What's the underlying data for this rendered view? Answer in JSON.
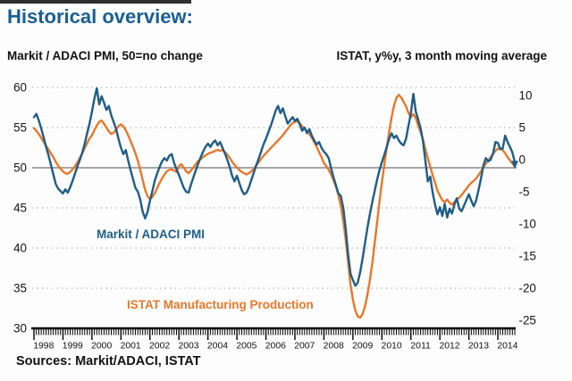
{
  "title": "Historical overview:",
  "source": "Sources: Markit/ADACI, ISTAT",
  "colors": {
    "pmi_blue": "#1f5d87",
    "istat_orange": "#e8782a",
    "title_blue": "#1b5e93",
    "grid_gray": "#9a9a9a",
    "midline_gray": "#8a8a8a",
    "axis_black": "#000000"
  },
  "chart_data": {
    "type": "line",
    "x_start": "1998-01",
    "x_interval": "monthly",
    "x_labels": [
      "1998",
      "1999",
      "2000",
      "2001",
      "2002",
      "2003",
      "2004",
      "2005",
      "2006",
      "2007",
      "2008",
      "2009",
      "2010",
      "2011",
      "2012",
      "2013",
      "2014"
    ],
    "left_axis": {
      "title": "Markit / ADACI PMI, 50=no change",
      "ticks": [
        60,
        55,
        50,
        45,
        40,
        35,
        30
      ],
      "min": 30,
      "max": 60,
      "solid_line_at": 50
    },
    "right_axis": {
      "title": "ISTAT, y%y, 3 month moving average",
      "ticks": [
        10,
        5,
        0,
        -5,
        -10,
        -15,
        -20,
        -25
      ],
      "min": -25,
      "max": 10
    },
    "grid": "dotted-horizontal",
    "legend_position": "in-plot-labels",
    "series": [
      {
        "id": "pmi",
        "name": "Markit / ADACI PMI",
        "axis": "left",
        "color": "#1f5d87",
        "end_marker": "arrow-down",
        "values": [
          56.3,
          56.7,
          55.9,
          54.9,
          53.8,
          52.6,
          51.6,
          50.4,
          49.2,
          48.0,
          47.4,
          47.1,
          46.8,
          47.3,
          46.9,
          47.6,
          48.4,
          49.3,
          50.2,
          51.0,
          51.9,
          53.0,
          54.3,
          55.5,
          57.0,
          58.6,
          59.9,
          57.9,
          58.9,
          58.1,
          57.2,
          57.7,
          56.5,
          55.7,
          54.8,
          53.6,
          52.5,
          51.7,
          52.2,
          50.9,
          49.7,
          48.6,
          47.5,
          47.0,
          46.0,
          44.5,
          43.7,
          44.5,
          45.9,
          47.1,
          48.4,
          49.3,
          50.1,
          50.8,
          51.2,
          50.9,
          51.5,
          51.7,
          50.6,
          49.8,
          49.1,
          48.3,
          47.5,
          47.0,
          46.9,
          47.9,
          48.8,
          49.7,
          50.5,
          51.3,
          52.0,
          52.6,
          53.0,
          52.6,
          53.1,
          53.4,
          52.8,
          53.2,
          52.5,
          51.8,
          51.0,
          50.1,
          49.0,
          48.3,
          49.0,
          48.1,
          47.2,
          46.7,
          46.9,
          47.6,
          48.5,
          49.4,
          50.3,
          51.1,
          52.0,
          52.9,
          53.6,
          54.4,
          55.2,
          56.1,
          57.1,
          57.7,
          56.8,
          57.4,
          56.4,
          55.5,
          55.9,
          56.3,
          55.8,
          56.1,
          55.4,
          54.6,
          55.0,
          54.3,
          54.8,
          54.0,
          53.4,
          52.9,
          53.2,
          52.5,
          52.0,
          51.7,
          51.2,
          49.9,
          48.8,
          47.8,
          46.8,
          46.5,
          45.0,
          42.4,
          39.2,
          36.8,
          36.0,
          35.3,
          35.7,
          37.0,
          38.7,
          40.6,
          42.5,
          44.2,
          45.7,
          47.1,
          48.5,
          49.7,
          50.7,
          51.6,
          52.6,
          53.6,
          54.3,
          53.7,
          54.0,
          53.4,
          53.0,
          52.8,
          53.6,
          55.2,
          56.8,
          59.2,
          57.0,
          56.0,
          54.9,
          53.3,
          50.8,
          48.3,
          48.9,
          46.9,
          45.4,
          44.2,
          45.1,
          44.0,
          45.5,
          43.8,
          44.9,
          44.3,
          45.4,
          46.2,
          44.9,
          44.6,
          45.3,
          46.0,
          46.7,
          45.9,
          45.2,
          45.9,
          47.2,
          48.7,
          50.3,
          51.2,
          50.8,
          51.0,
          51.8,
          53.2,
          53.1,
          52.3,
          52.4,
          54.0,
          53.2,
          52.6,
          51.9,
          50.7
        ]
      },
      {
        "id": "istat",
        "name": "ISTAT Manufacturing Production",
        "axis": "right",
        "color": "#e8782a",
        "values": [
          4.9,
          4.5,
          4.0,
          3.4,
          2.8,
          2.2,
          1.6,
          1.0,
          0.4,
          -0.3,
          -0.9,
          -1.4,
          -1.8,
          -2.1,
          -2.2,
          -1.9,
          -1.5,
          -1.0,
          -0.4,
          0.3,
          1.0,
          1.8,
          2.6,
          3.3,
          3.8,
          4.6,
          5.3,
          5.9,
          6.1,
          5.6,
          5.0,
          4.4,
          4.0,
          4.2,
          4.7,
          5.2,
          5.5,
          5.2,
          4.6,
          3.8,
          2.9,
          2.0,
          1.0,
          -0.2,
          -1.6,
          -3.2,
          -4.7,
          -5.7,
          -6.1,
          -5.8,
          -5.2,
          -4.4,
          -3.6,
          -2.9,
          -2.3,
          -1.8,
          -1.6,
          -1.5,
          -1.7,
          -1.9,
          -1.0,
          -0.7,
          -1.2,
          -1.8,
          -2.1,
          -1.7,
          -1.2,
          -0.7,
          -0.2,
          0.1,
          0.4,
          0.7,
          0.9,
          1.1,
          1.2,
          1.4,
          1.5,
          1.4,
          1.5,
          1.2,
          0.8,
          0.3,
          -0.3,
          -0.8,
          -1.2,
          -1.6,
          -1.9,
          -2.1,
          -2.3,
          -2.1,
          -1.8,
          -1.4,
          -0.9,
          -0.4,
          0.1,
          0.6,
          1.0,
          1.4,
          1.8,
          2.2,
          2.6,
          3.0,
          3.4,
          3.8,
          4.3,
          4.8,
          5.3,
          5.7,
          5.9,
          6.0,
          5.7,
          5.2,
          4.8,
          4.4,
          4.0,
          3.4,
          2.7,
          2.0,
          1.2,
          0.4,
          -0.5,
          -1.0,
          -1.6,
          -2.3,
          -3.2,
          -4.2,
          -5.5,
          -7.2,
          -9.5,
          -12.5,
          -16.0,
          -19.5,
          -21.8,
          -23.5,
          -24.4,
          -24.6,
          -24.0,
          -22.8,
          -21.0,
          -18.8,
          -16.2,
          -13.0,
          -9.8,
          -6.5,
          -3.5,
          -0.8,
          1.8,
          4.3,
          6.6,
          8.4,
          9.6,
          10.1,
          9.7,
          9.0,
          8.3,
          7.3,
          6.6,
          7.1,
          6.5,
          5.3,
          4.3,
          3.1,
          1.6,
          0.2,
          -1.1,
          -2.4,
          -3.6,
          -4.8,
          -5.6,
          -6.3,
          -6.6,
          -6.2,
          -6.7,
          -7.0,
          -6.6,
          -6.2,
          -5.9,
          -5.5,
          -5.0,
          -4.5,
          -4.0,
          -3.6,
          -3.3,
          -2.9,
          -2.4,
          -1.8,
          -1.2,
          -0.6,
          -0.1,
          0.4,
          0.9,
          1.4,
          1.7,
          1.8,
          1.5,
          1.0,
          0.4,
          -0.1,
          -0.6,
          -1.0
        ]
      }
    ]
  }
}
